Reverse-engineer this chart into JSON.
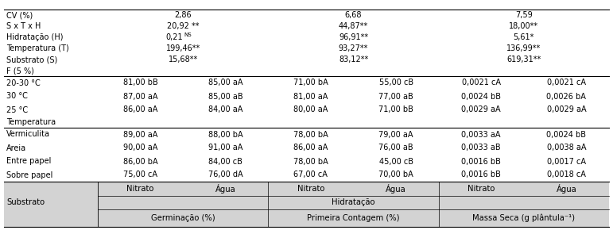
{
  "col_group_labels": [
    "Germinação (%)",
    "Primeira Contagem (%)",
    "Massa Seca (g plântula⁻¹)"
  ],
  "hidratacao_label": "Hidratação",
  "sub_headers": [
    "Nitrato",
    "Água",
    "Nitrato",
    "Água",
    "Nitrato",
    "Água"
  ],
  "row_header_label": "Substrato",
  "rows_section1": [
    {
      "label": "Sobre papel",
      "values": [
        "75,00 cA",
        "76,00 dA",
        "67,00 cA",
        "70,00 bA",
        "0,0016 bB",
        "0,0018 cA"
      ]
    },
    {
      "label": "Entre papel",
      "values": [
        "86,00 bA",
        "84,00 cB",
        "78,00 bA",
        "45,00 cB",
        "0,0016 bB",
        "0,0017 cA"
      ]
    },
    {
      "label": "Areia",
      "values": [
        "90,00 aA",
        "91,00 aA",
        "86,00 aA",
        "76,00 aB",
        "0,0033 aB",
        "0,0038 aA"
      ]
    },
    {
      "label": "Vermiculita",
      "values": [
        "89,00 aA",
        "88,00 bA",
        "78,00 bA",
        "79,00 aA",
        "0,0033 aA",
        "0,0024 bB"
      ]
    }
  ],
  "section2_header": "Temperatura",
  "rows_section2": [
    {
      "label": "25 °C",
      "values": [
        "86,00 aA",
        "84,00 aA",
        "80,00 aA",
        "71,00 bB",
        "0,0029 aA",
        "0,0029 aA"
      ]
    },
    {
      "label": "30 °C",
      "values": [
        "87,00 aA",
        "85,00 aB",
        "81,00 aA",
        "77,00 aB",
        "0,0024 bB",
        "0,0026 bA"
      ]
    },
    {
      "label": "20-30 °C",
      "values": [
        "81,00 bB",
        "85,00 aA",
        "71,00 bA",
        "55,00 cB",
        "0,0021 cA",
        "0,0021 cA"
      ]
    }
  ],
  "stats_header": "F (5 %)",
  "stats_rows": [
    {
      "label": "Substrato (S)",
      "values": [
        "15,68**",
        "83,12**",
        "619,31**"
      ]
    },
    {
      "label": "Temperatura (T)",
      "values": [
        "199,46**",
        "93,27**",
        "136,99**"
      ]
    },
    {
      "label": "Hidratação (H)",
      "values": [
        "0,21^NS",
        "96,91**",
        "5,61*"
      ]
    },
    {
      "label": "S x T x H",
      "values": [
        "20,92 **",
        "44,87**",
        "18,00**"
      ]
    },
    {
      "label": "CV (%)",
      "values": [
        "2,86",
        "6,68",
        "7,59"
      ]
    }
  ],
  "bg_header": "#d3d3d3",
  "line_color": "#000000",
  "font_size": 7.0,
  "font_size_header": 7.2
}
